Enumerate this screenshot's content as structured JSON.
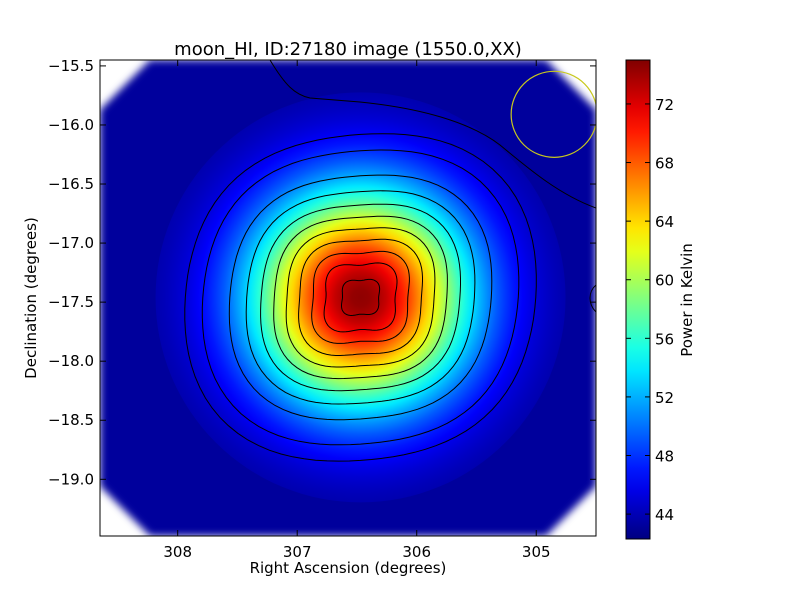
{
  "chart_data": {
    "type": "heatmap",
    "title": "moon_HI, ID:27180 image (1550.0,XX)",
    "xlabel": "Right Ascension (degrees)",
    "ylabel": "Declination (degrees)",
    "xlim": [
      308.65,
      304.5
    ],
    "ylim": [
      -19.48,
      -15.45
    ],
    "xticks": [
      308,
      307,
      306,
      305
    ],
    "xtick_labels": [
      "308",
      "307",
      "306",
      "305"
    ],
    "yticks": [
      -15.5,
      -16.0,
      -16.5,
      -17.0,
      -17.5,
      -18.0,
      -18.5,
      -19.0
    ],
    "ytick_labels": [
      "−15.5",
      "−16.0",
      "−16.5",
      "−17.0",
      "−17.5",
      "−18.0",
      "−18.5",
      "−19.0"
    ],
    "colorbar": {
      "label": "Power in Kelvin",
      "range": [
        42.3,
        75.0
      ],
      "ticks": [
        44,
        48,
        52,
        56,
        60,
        64,
        68,
        72
      ],
      "tick_labels": [
        "44",
        "48",
        "52",
        "56",
        "60",
        "64",
        "68",
        "72"
      ],
      "colormap": "jet"
    },
    "source": {
      "ra": 306.47,
      "dec": -17.46,
      "peak_value": 74.5,
      "background_value": 43.0
    },
    "contour_levels": [
      44,
      45.5,
      47,
      50.5,
      53.5,
      56.5,
      59.5,
      62.5,
      65.5,
      68.5,
      71,
      73.5
    ],
    "beam_marker": {
      "ra": 304.85,
      "dec": -15.91,
      "radius_deg": 0.36,
      "color": "#c8c81e"
    },
    "grid": false
  }
}
